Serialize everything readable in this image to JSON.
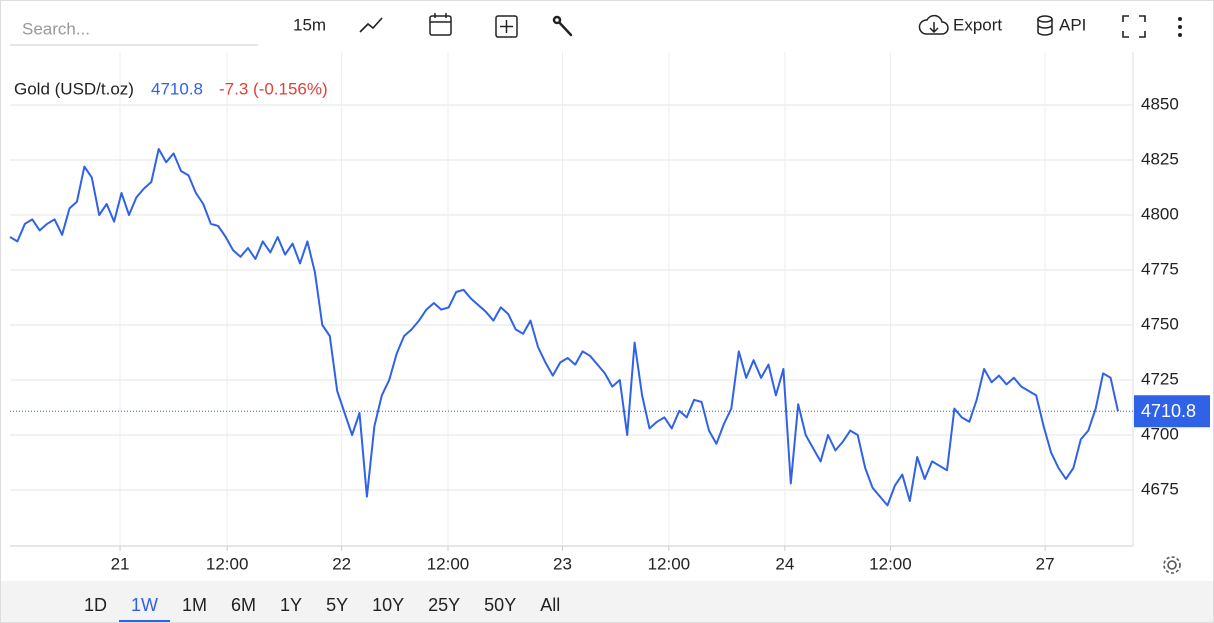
{
  "ui": {
    "search_placeholder": "Search...",
    "interval": "15m",
    "export": "Export",
    "api": "API",
    "ranges": [
      "1D",
      "1W",
      "1M",
      "6M",
      "1Y",
      "5Y",
      "10Y",
      "25Y",
      "50Y",
      "All"
    ],
    "selected_range": "1W"
  },
  "chart_data": {
    "type": "line",
    "title": "Gold (USD/t.oz)",
    "change": "-7.3 (-0.156%)",
    "series": [
      {
        "name": "Gold",
        "color": "#2f62e6",
        "values": [
          4790,
          4788,
          4796,
          4798,
          4793,
          4796,
          4798,
          4791,
          4803,
          4806,
          4822,
          4817,
          4800,
          4805,
          4797,
          4810,
          4800,
          4808,
          4812,
          4815,
          4830,
          4824,
          4828,
          4820,
          4818,
          4810,
          4805,
          4796,
          4795,
          4790,
          4784,
          4781,
          4785,
          4780,
          4788,
          4783,
          4790,
          4782,
          4787,
          4778,
          4788,
          4774,
          4750,
          4745,
          4720,
          4710,
          4700,
          4710,
          4672,
          4704,
          4718,
          4725,
          4737,
          4745,
          4748,
          4752,
          4757,
          4760,
          4757,
          4758,
          4765,
          4766,
          4762,
          4759,
          4756,
          4752,
          4758,
          4755,
          4748,
          4746,
          4752,
          4740,
          4733,
          4727,
          4733,
          4735,
          4732,
          4738,
          4736,
          4732,
          4728,
          4722,
          4725,
          4700,
          4742,
          4718,
          4703,
          4706,
          4708,
          4703,
          4711,
          4708,
          4716,
          4715,
          4702,
          4696,
          4705,
          4712,
          4738,
          4726,
          4734,
          4726,
          4732,
          4718,
          4730,
          4678,
          4714,
          4700,
          4694,
          4688,
          4700,
          4693,
          4697,
          4702,
          4700,
          4685,
          4676,
          4672,
          4668,
          4677,
          4682,
          4670,
          4690,
          4680,
          4688,
          4686,
          4684,
          4712,
          4708,
          4706,
          4716,
          4730,
          4724,
          4727,
          4723,
          4726,
          4722,
          4720,
          4718,
          4704,
          4692,
          4685,
          4680,
          4685,
          4698,
          4702,
          4712,
          4728,
          4726,
          4710.8
        ]
      }
    ],
    "xlim": [
      0,
      149
    ],
    "xticks": [
      {
        "value": 14.8,
        "label": "21"
      },
      {
        "value": 29.2,
        "label": "12:00"
      },
      {
        "value": 44.6,
        "label": "22"
      },
      {
        "value": 58.9,
        "label": "12:00"
      },
      {
        "value": 74.3,
        "label": "23"
      },
      {
        "value": 88.6,
        "label": "12:00"
      },
      {
        "value": 104.2,
        "label": "24"
      },
      {
        "value": 118.4,
        "label": "12:00"
      },
      {
        "value": 139.2,
        "label": "27"
      }
    ],
    "ylim": [
      4650,
      4875
    ],
    "yticks": [
      4675,
      4700,
      4725,
      4750,
      4775,
      4800,
      4825,
      4850
    ],
    "grid": true
  }
}
